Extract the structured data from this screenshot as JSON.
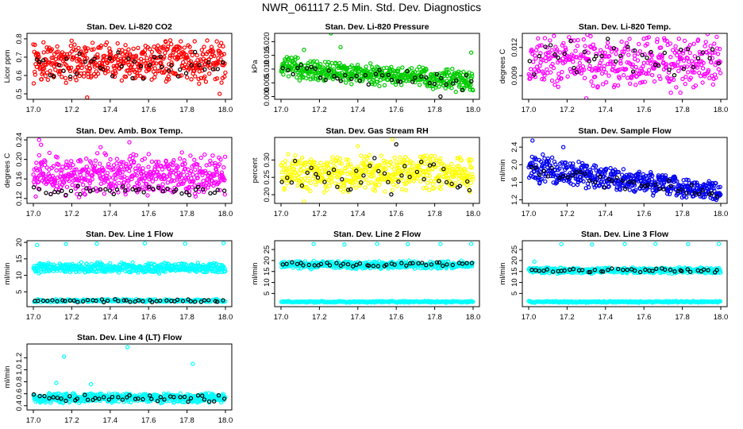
{
  "page_title": "NWR_061117  2.5 Min. Std. Dev. Diagnostics",
  "colors": {
    "red": "#ff0000",
    "green": "#00cc00",
    "magenta": "#ff00ff",
    "yellow": "#ffff00",
    "blue": "#0000ee",
    "cyan": "#00ffff",
    "black": "#000000"
  },
  "chart_data": [
    {
      "id": "co2",
      "type": "scatter",
      "title": "Stan. Dev. Li-820 CO2",
      "ylabel": "Licor ppm",
      "xlim": [
        17.0,
        18.0
      ],
      "ylim": [
        0.47,
        0.83
      ],
      "x_ticks": [
        "17.0",
        "17.2",
        "17.4",
        "17.6",
        "17.8",
        "18.0"
      ],
      "y_ticks": [
        {
          "v": 0.5,
          "label": "0.5"
        },
        {
          "v": 0.6,
          "label": "0.6"
        },
        {
          "v": 0.7,
          "label": "0.7"
        },
        {
          "v": 0.8,
          "label": "0.8"
        }
      ],
      "series": [
        {
          "name": "primary",
          "color": "red",
          "mode": "band",
          "n": 520,
          "lo": 0.55,
          "hi": 0.8,
          "outliers": [
            [
              17.28,
              0.48
            ],
            [
              17.31,
              0.84
            ],
            [
              17.37,
              0.84
            ],
            [
              17.97,
              0.5
            ]
          ]
        },
        {
          "name": "black",
          "color": "black",
          "mode": "band",
          "n": 42,
          "lo": 0.56,
          "hi": 0.76,
          "outliers": []
        }
      ]
    },
    {
      "id": "pressure",
      "type": "scatter",
      "title": "Stan. Dev. Li-820 Pressure",
      "ylabel": "kPa",
      "xlim": [
        17.0,
        18.0
      ],
      "ylim": [
        -0.001,
        0.023
      ],
      "x_ticks": [
        "17.0",
        "17.2",
        "17.4",
        "17.6",
        "17.8",
        "18.0"
      ],
      "y_ticks": [
        {
          "v": 0.0,
          "label": "0.000"
        },
        {
          "v": 0.005,
          "label": "0.005"
        },
        {
          "v": 0.01,
          "label": "0.010"
        },
        {
          "v": 0.015,
          "label": "0.015"
        },
        {
          "v": 0.02,
          "label": "0.020"
        }
      ],
      "series": [
        {
          "name": "primary",
          "color": "green",
          "mode": "slope",
          "n": 520,
          "lo0": 0.006,
          "hi0": 0.015,
          "lo1": 0.001,
          "hi1": 0.01,
          "outliers": [
            [
              17.26,
              0.023
            ],
            [
              17.12,
              0.017
            ],
            [
              17.31,
              0.018
            ],
            [
              17.99,
              0.016
            ]
          ]
        },
        {
          "name": "black",
          "color": "black",
          "mode": "slope",
          "n": 42,
          "lo0": 0.006,
          "hi0": 0.013,
          "lo1": 0.001,
          "hi1": 0.008,
          "outliers": [
            [
              17.83,
              0.0
            ]
          ]
        }
      ]
    },
    {
      "id": "temp",
      "type": "scatter",
      "title": "Stan. Dev. Li-820 Temp.",
      "ylabel": "degrees C",
      "xlim": [
        17.0,
        18.0
      ],
      "ylim": [
        0.0065,
        0.0135
      ],
      "x_ticks": [
        "17.0",
        "17.2",
        "17.4",
        "17.6",
        "17.8",
        "18.0"
      ],
      "y_ticks": [
        {
          "v": 0.006,
          "label": "0.006"
        },
        {
          "v": 0.009,
          "label": "0.009"
        },
        {
          "v": 0.012,
          "label": "0.012"
        }
      ],
      "series": [
        {
          "name": "primary",
          "color": "magenta",
          "mode": "band",
          "n": 420,
          "lo": 0.0075,
          "hi": 0.0135,
          "outliers": [
            [
              17.3,
              0.0066
            ],
            [
              17.74,
              0.0072
            ],
            [
              17.79,
              0.0072
            ]
          ]
        },
        {
          "name": "black",
          "color": "black",
          "mode": "band",
          "n": 40,
          "lo": 0.0085,
          "hi": 0.0132,
          "outliers": []
        }
      ]
    },
    {
      "id": "boxtemp",
      "type": "scatter",
      "title": "Stan. Dev. Amb. Box Temp.",
      "ylabel": "degrees C",
      "xlim": [
        17.0,
        18.0
      ],
      "ylim": [
        0.11,
        0.245
      ],
      "x_ticks": [
        "17.0",
        "17.2",
        "17.4",
        "17.6",
        "17.8",
        "18.0"
      ],
      "y_ticks": [
        {
          "v": 0.12,
          "label": "0.12"
        },
        {
          "v": 0.16,
          "label": "0.16"
        },
        {
          "v": 0.2,
          "label": "0.20"
        },
        {
          "v": 0.24,
          "label": "0.24"
        }
      ],
      "series": [
        {
          "name": "primary",
          "color": "magenta",
          "mode": "band",
          "n": 520,
          "lo": 0.12,
          "hi": 0.215,
          "outliers": [
            [
              17.03,
              0.24
            ],
            [
              17.04,
              0.23
            ],
            [
              17.35,
              0.225
            ],
            [
              17.5,
              0.235
            ]
          ]
        },
        {
          "name": "black",
          "color": "black",
          "mode": "band",
          "n": 42,
          "lo": 0.125,
          "hi": 0.15,
          "outliers": []
        }
      ]
    },
    {
      "id": "rh",
      "type": "scatter",
      "title": "Stan. Dev. Gas Stream RH",
      "ylabel": "percent",
      "xlim": [
        17.0,
        18.0
      ],
      "ylim": [
        0.175,
        0.365
      ],
      "x_ticks": [
        "17.0",
        "17.2",
        "17.4",
        "17.6",
        "17.8",
        "18.0"
      ],
      "y_ticks": [
        {
          "v": 0.2,
          "label": "0.20"
        },
        {
          "v": 0.25,
          "label": "0.25"
        },
        {
          "v": 0.3,
          "label": "0.30"
        }
      ],
      "series": [
        {
          "name": "primary",
          "color": "yellow",
          "mode": "band",
          "n": 520,
          "lo": 0.205,
          "hi": 0.32,
          "outliers": [
            [
              17.12,
              0.18
            ],
            [
              17.58,
              0.36
            ],
            [
              17.4,
              0.34
            ]
          ]
        },
        {
          "name": "black",
          "color": "black",
          "mode": "band",
          "n": 42,
          "lo": 0.2,
          "hi": 0.31,
          "outliers": [
            [
              17.6,
              0.345
            ]
          ]
        }
      ]
    },
    {
      "id": "sampleflow",
      "type": "scatter",
      "title": "Stan. Dev. Sample Flow",
      "ylabel": "ml/min",
      "xlim": [
        17.0,
        18.0
      ],
      "ylim": [
        1.12,
        2.62
      ],
      "x_ticks": [
        "17.0",
        "17.2",
        "17.4",
        "17.6",
        "17.8",
        "18.0"
      ],
      "y_ticks": [
        {
          "v": 1.2,
          "label": "1.2"
        },
        {
          "v": 1.6,
          "label": "1.6"
        },
        {
          "v": 2.0,
          "label": "2.0"
        },
        {
          "v": 2.4,
          "label": "2.4"
        }
      ],
      "series": [
        {
          "name": "primary",
          "color": "blue",
          "mode": "slope",
          "n": 520,
          "lo0": 1.55,
          "hi0": 2.3,
          "lo1": 1.15,
          "hi1": 1.6,
          "outliers": [
            [
              17.02,
              2.55
            ],
            [
              17.18,
              2.4
            ]
          ]
        },
        {
          "name": "black",
          "color": "black",
          "mode": "slope",
          "n": 42,
          "lo0": 1.6,
          "hi0": 2.1,
          "lo1": 1.2,
          "hi1": 1.5,
          "outliers": []
        }
      ]
    },
    {
      "id": "line1",
      "type": "scatter",
      "title": "Stan. Dev. Line 1 Flow",
      "ylabel": "ml/min",
      "xlim": [
        17.0,
        18.0
      ],
      "ylim": [
        0.5,
        20.5
      ],
      "x_ticks": [
        "17.0",
        "17.2",
        "17.4",
        "17.6",
        "17.8",
        "18.0"
      ],
      "y_ticks": [
        {
          "v": 5,
          "label": "5"
        },
        {
          "v": 10,
          "label": "10"
        },
        {
          "v": 15,
          "label": "15"
        },
        {
          "v": 20,
          "label": "20"
        }
      ],
      "series": [
        {
          "name": "cyan-high",
          "color": "cyan",
          "mode": "band",
          "n": 480,
          "lo": 10.5,
          "hi": 14,
          "outliers": [
            [
              17.02,
              19.2
            ],
            [
              17.17,
              19.5
            ],
            [
              17.33,
              19.6
            ],
            [
              17.58,
              19.7
            ],
            [
              17.79,
              19.6
            ],
            [
              17.99,
              19.8
            ]
          ]
        },
        {
          "name": "cyan-low",
          "color": "cyan",
          "mode": "band",
          "n": 200,
          "lo": 1.8,
          "hi": 2.8,
          "outliers": []
        },
        {
          "name": "black",
          "color": "black",
          "mode": "band",
          "n": 44,
          "lo": 1.8,
          "hi": 2.8,
          "outliers": []
        }
      ]
    },
    {
      "id": "line2",
      "type": "scatter",
      "title": "Stan. Dev. Line 2 Flow",
      "ylabel": "ml/min",
      "xlim": [
        17.0,
        18.0
      ],
      "ylim": [
        -1,
        29
      ],
      "x_ticks": [
        "17.0",
        "17.2",
        "17.4",
        "17.6",
        "17.8",
        "18.0"
      ],
      "y_ticks": [
        {
          "v": 5,
          "label": "5"
        },
        {
          "v": 10,
          "label": "10"
        },
        {
          "v": 15,
          "label": "15"
        },
        {
          "v": 20,
          "label": "20"
        },
        {
          "v": 25,
          "label": "25"
        }
      ],
      "series": [
        {
          "name": "cyan-high",
          "color": "cyan",
          "mode": "band",
          "n": 480,
          "lo": 16,
          "hi": 20,
          "outliers": [
            [
              17.17,
              27.5
            ],
            [
              17.33,
              27.3
            ],
            [
              17.5,
              27.6
            ],
            [
              17.66,
              27.4
            ],
            [
              17.83,
              27.5
            ],
            [
              17.99,
              27.6
            ]
          ]
        },
        {
          "name": "cyan-low",
          "color": "cyan",
          "mode": "band",
          "n": 260,
          "lo": 0.8,
          "hi": 1.6,
          "outliers": []
        },
        {
          "name": "black",
          "color": "black",
          "mode": "band",
          "n": 44,
          "lo": 17,
          "hi": 19.5,
          "outliers": []
        }
      ]
    },
    {
      "id": "line3",
      "type": "scatter",
      "title": "Stan. Dev. Line 3 Flow",
      "ylabel": "ml/min",
      "xlim": [
        17.0,
        18.0
      ],
      "ylim": [
        -1,
        29
      ],
      "x_ticks": [
        "17.0",
        "17.2",
        "17.4",
        "17.6",
        "17.8",
        "18.0"
      ],
      "y_ticks": [
        {
          "v": 5,
          "label": "5"
        },
        {
          "v": 10,
          "label": "10"
        },
        {
          "v": 15,
          "label": "15"
        },
        {
          "v": 20,
          "label": "20"
        },
        {
          "v": 25,
          "label": "25"
        }
      ],
      "series": [
        {
          "name": "cyan-high",
          "color": "cyan",
          "mode": "band",
          "n": 460,
          "lo": 14,
          "hi": 17,
          "outliers": [
            [
              17.03,
              19.5
            ],
            [
              17.17,
              27.4
            ],
            [
              17.33,
              27.3
            ],
            [
              17.5,
              27.5
            ],
            [
              17.66,
              27.6
            ],
            [
              17.83,
              27.4
            ],
            [
              17.99,
              27.6
            ]
          ]
        },
        {
          "name": "cyan-low",
          "color": "cyan",
          "mode": "band",
          "n": 260,
          "lo": 0.8,
          "hi": 1.6,
          "outliers": []
        },
        {
          "name": "black",
          "color": "black",
          "mode": "band",
          "n": 44,
          "lo": 14.5,
          "hi": 16.5,
          "outliers": []
        }
      ]
    },
    {
      "id": "line4",
      "type": "scatter",
      "title": "Stan. Dev. Line 4 (LT) Flow",
      "ylabel": "ml/min",
      "xlim": [
        17.0,
        18.0
      ],
      "ylim": [
        0.33,
        1.43
      ],
      "x_ticks": [
        "17.0",
        "17.2",
        "17.4",
        "17.6",
        "17.8",
        "18.0"
      ],
      "y_ticks": [
        {
          "v": 0.4,
          "label": "0.4"
        },
        {
          "v": 0.6,
          "label": "0.6"
        },
        {
          "v": 0.8,
          "label": "0.8"
        },
        {
          "v": 1.0,
          "label": "1.0"
        },
        {
          "v": 1.2,
          "label": "1.2"
        }
      ],
      "series": [
        {
          "name": "primary",
          "color": "cyan",
          "mode": "band",
          "n": 520,
          "lo": 0.44,
          "hi": 0.62,
          "outliers": [
            [
              17.16,
              1.22
            ],
            [
              17.49,
              1.38
            ],
            [
              17.83,
              1.1
            ],
            [
              17.12,
              0.78
            ],
            [
              17.3,
              0.76
            ]
          ]
        },
        {
          "name": "black",
          "color": "black",
          "mode": "band",
          "n": 44,
          "lo": 0.45,
          "hi": 0.6,
          "outliers": []
        }
      ]
    }
  ]
}
